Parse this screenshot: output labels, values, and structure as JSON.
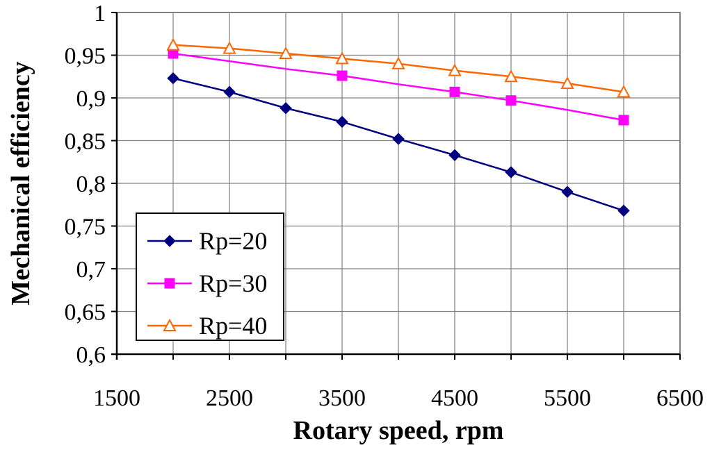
{
  "chart_data": {
    "type": "line",
    "title": "",
    "xlabel": "Rotary speed, rpm",
    "ylabel": "Mechanical efficiency",
    "xlim": [
      1500,
      6500
    ],
    "ylim": [
      0.6,
      1.0
    ],
    "x_ticks": [
      1500,
      2500,
      3500,
      4500,
      5500,
      6500
    ],
    "x_tick_labels": [
      "1500",
      "2500",
      "3500",
      "4500",
      "5500",
      "6500"
    ],
    "x_grid": [
      1500,
      2000,
      2500,
      3000,
      3500,
      4000,
      4500,
      5000,
      5500,
      6000,
      6500
    ],
    "y_ticks": [
      0.6,
      0.65,
      0.7,
      0.75,
      0.8,
      0.85,
      0.9,
      0.95,
      1.0
    ],
    "y_tick_labels": [
      "0,6",
      "0,65",
      "0,7",
      "0,75",
      "0,8",
      "0,85",
      "0,9",
      "0,95",
      "1"
    ],
    "grid": true,
    "legend_position": "left",
    "series": [
      {
        "name": "Rp=20",
        "color": "#000080",
        "marker": "diamond",
        "x": [
          2000,
          2500,
          3000,
          3500,
          4000,
          4500,
          5000,
          5500,
          6000
        ],
        "values": [
          0.923,
          0.907,
          0.888,
          0.872,
          0.852,
          0.833,
          0.813,
          0.79,
          0.768
        ]
      },
      {
        "name": "Rp=30",
        "color": "#FF00FF",
        "marker": "square",
        "x": [
          2000,
          3500,
          4500,
          5000,
          6000
        ],
        "values": [
          0.952,
          0.926,
          0.907,
          0.897,
          0.874
        ],
        "line_x": [
          2000,
          2500,
          3000,
          3500,
          4000,
          4500,
          5000,
          5500,
          6000
        ],
        "line_values": [
          0.952,
          0.943,
          0.934,
          0.926,
          0.916,
          0.907,
          0.897,
          0.886,
          0.874
        ]
      },
      {
        "name": "Rp=40",
        "color": "#FF6600",
        "marker": "triangle-open",
        "x": [
          2000,
          2500,
          3000,
          3500,
          4000,
          4500,
          5000,
          5500,
          6000
        ],
        "values": [
          0.962,
          0.958,
          0.952,
          0.946,
          0.94,
          0.932,
          0.925,
          0.917,
          0.907
        ]
      }
    ]
  }
}
